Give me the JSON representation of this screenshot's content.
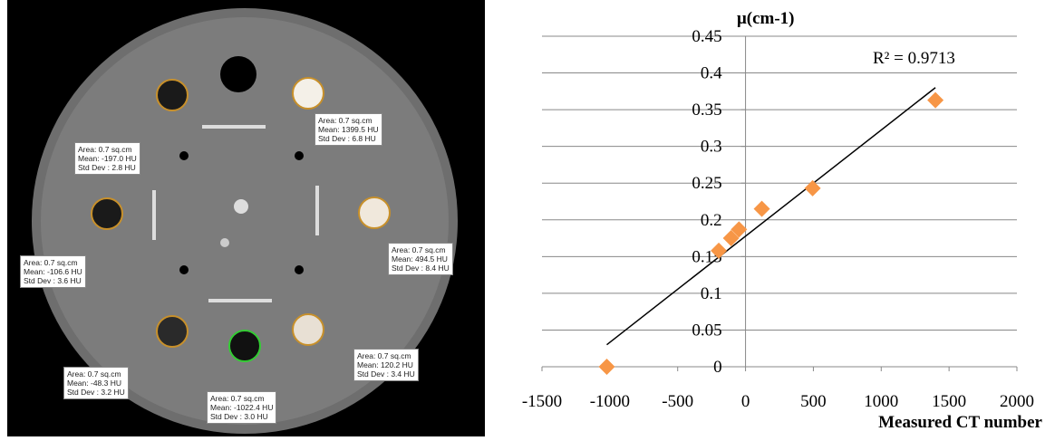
{
  "roi_labels": [
    {
      "lines": [
        "Area: 0.7 sq.cm",
        "Mean: -197.0 HU",
        "Std Dev : 2.8 HU"
      ]
    },
    {
      "lines": [
        "Area: 0.7 sq.cm",
        "Mean: 1399.5 HU",
        "Std Dev : 6.8 HU"
      ]
    },
    {
      "lines": [
        "Area: 0.7 sq.cm",
        "Mean: 494.5 HU",
        "Std Dev : 8.4 HU"
      ]
    },
    {
      "lines": [
        "Area: 0.7 sq.cm",
        "Mean: -106.6 HU",
        "Std Dev : 3.6 HU"
      ]
    },
    {
      "lines": [
        "Area: 0.7 sq.cm",
        "Mean: 120.2 HU",
        "Std Dev : 3.4 HU"
      ]
    },
    {
      "lines": [
        "Area: 0.7 sq.cm",
        "Mean: -48.3 HU",
        "Std Dev : 3.2 HU"
      ]
    },
    {
      "lines": [
        "Area: 0.7 sq.cm",
        "Mean: -1022.4 HU",
        "Std Dev : 3.0 HU"
      ]
    }
  ],
  "chart_data": {
    "type": "scatter",
    "y_label": "μ(cm-1)",
    "x_label": "Measured CT number",
    "annotation": "R² = 0.9713",
    "series": [
      {
        "color": "#f79646",
        "x": [
          -1022.4,
          -197.0,
          -106.6,
          -48.3,
          120.2,
          494.5,
          1399.5
        ],
        "values": [
          0,
          0.158,
          0.175,
          0.187,
          0.215,
          0.243,
          0.363
        ]
      }
    ],
    "trendline": {
      "color": "#000000",
      "x": [
        -1022.4,
        1399.5
      ],
      "values": [
        0.03,
        0.38
      ]
    },
    "xlim": [
      -1500,
      2000
    ],
    "xticks": [
      -1500,
      -1000,
      -500,
      0,
      500,
      1000,
      1500,
      2000
    ],
    "ylim": [
      0,
      0.45
    ],
    "yticks": [
      0,
      0.05,
      0.1,
      0.15,
      0.2,
      0.25,
      0.3,
      0.35,
      0.4,
      0.45
    ],
    "grid": true
  }
}
